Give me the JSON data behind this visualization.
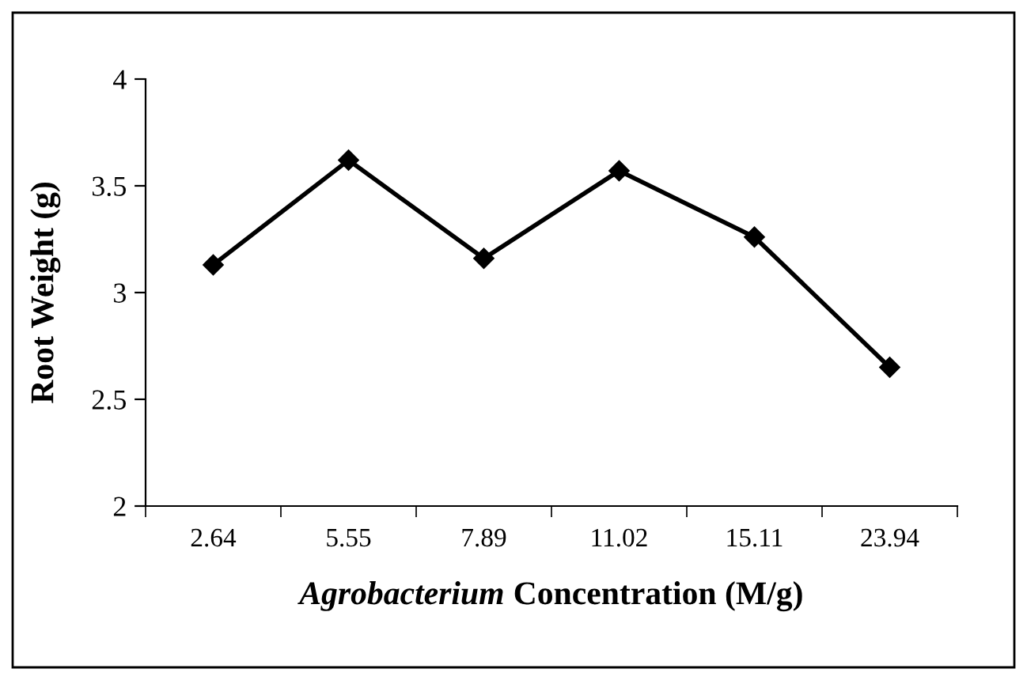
{
  "chart_data": {
    "type": "line",
    "xlabel": "Agrobacterium Concentration (M/g)",
    "ylabel": "Root Weight (g)",
    "categories": [
      "2.64",
      "5.55",
      "7.89",
      "11.02",
      "15.11",
      "23.94"
    ],
    "series": [
      {
        "color": "#000000",
        "values": [
          3.13,
          3.62,
          3.16,
          3.57,
          3.26,
          2.65
        ]
      }
    ],
    "ylim": [
      2,
      4
    ],
    "yticks": [
      2,
      2.5,
      3,
      3.5,
      4
    ],
    "grid": false,
    "legend": false,
    "marker": "diamond",
    "line_style": "solid"
  }
}
